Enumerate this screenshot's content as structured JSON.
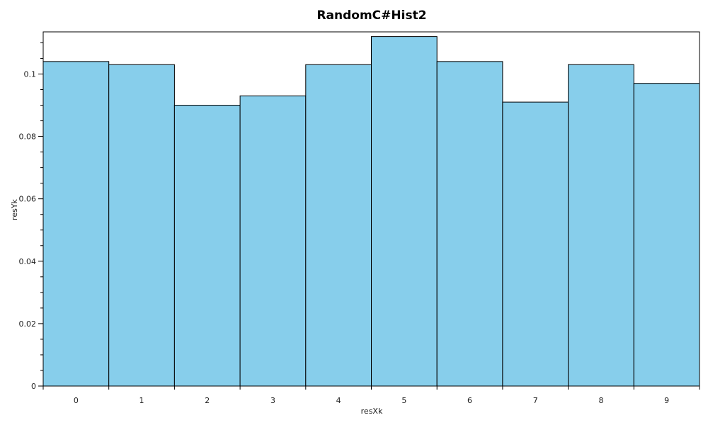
{
  "chart_data": {
    "type": "bar",
    "title": "RandomC#Hist2",
    "xlabel": "resXk",
    "ylabel": "resYk",
    "categories": [
      "0",
      "1",
      "2",
      "3",
      "4",
      "5",
      "6",
      "7",
      "8",
      "9"
    ],
    "values": [
      0.104,
      0.103,
      0.09,
      0.093,
      0.103,
      0.112,
      0.104,
      0.091,
      0.103,
      0.097
    ],
    "ylim": [
      0,
      0.1135
    ],
    "yticks": [
      0,
      0.02,
      0.04,
      0.06,
      0.08,
      0.1
    ],
    "ytick_labels": [
      "0",
      "0.02",
      "0.04",
      "0.06",
      "0.08",
      "0.1"
    ],
    "grid": false,
    "bar_color": "#87ceeb",
    "bar_edge_color": "#000000"
  }
}
